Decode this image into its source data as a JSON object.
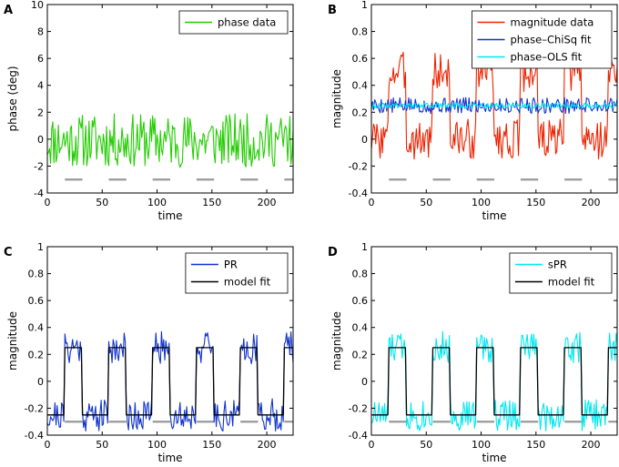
{
  "chart_data": [
    {
      "type": "line",
      "panel_label": "A",
      "xlabel": "time",
      "ylabel": "phase (deg)",
      "xlim": [
        0,
        224
      ],
      "ylim": [
        -4,
        10
      ],
      "xticks": [
        0,
        50,
        100,
        150,
        200
      ],
      "yticks": [
        -4,
        -2,
        0,
        2,
        4,
        6,
        8,
        10
      ],
      "legend": "top-right",
      "stimulus": {
        "level": -3,
        "onsets": [
          16,
          56,
          96,
          136,
          176,
          216
        ],
        "on_duration": 16,
        "color": "#999999"
      },
      "series": [
        {
          "name": "phase data",
          "color": "#22cc00",
          "in_legend": true,
          "gen": "noise",
          "seed": 11,
          "base": -0.1,
          "amp": 2.0
        }
      ]
    },
    {
      "type": "line",
      "panel_label": "B",
      "xlabel": "time",
      "ylabel": "magnitude",
      "xlim": [
        0,
        224
      ],
      "ylim": [
        -0.4,
        1
      ],
      "xticks": [
        0,
        50,
        100,
        150,
        200
      ],
      "yticks": [
        -0.4,
        -0.2,
        0,
        0.2,
        0.4,
        0.6,
        0.8,
        1
      ],
      "legend": "top-right",
      "stimulus": {
        "level": -0.3,
        "onsets": [
          16,
          56,
          96,
          136,
          176,
          216
        ],
        "on_duration": 16,
        "color": "#999999"
      },
      "series": [
        {
          "name": "magnitude data",
          "color": "#ee2200",
          "in_legend": true,
          "gen": "square",
          "seed": 3,
          "low": 0.0,
          "high": 0.5,
          "amp": 0.15,
          "onsets": [
            16,
            56,
            96,
            136,
            176,
            216
          ],
          "on_duration": 16
        },
        {
          "name": "phase–ChiSq fit",
          "color": "#1133cc",
          "in_legend": true,
          "gen": "noise",
          "seed": 5,
          "base": 0.25,
          "amp": 0.06
        },
        {
          "name": "phase–OLS fit",
          "color": "#00e8ee",
          "in_legend": true,
          "gen": "noise",
          "seed": 9,
          "base": 0.25,
          "amp": 0.02
        }
      ]
    },
    {
      "type": "line",
      "panel_label": "C",
      "xlabel": "time",
      "ylabel": "magnitude",
      "xlim": [
        0,
        224
      ],
      "ylim": [
        -0.4,
        1
      ],
      "xticks": [
        0,
        50,
        100,
        150,
        200
      ],
      "yticks": [
        -0.4,
        -0.2,
        0,
        0.2,
        0.4,
        0.6,
        0.8,
        1
      ],
      "legend": "top-right",
      "stimulus": {
        "level": -0.3,
        "onsets": [
          16,
          56,
          96,
          136,
          176,
          216
        ],
        "on_duration": 16,
        "color": "#999999"
      },
      "series": [
        {
          "name": "PR",
          "color": "#1133cc",
          "in_legend": true,
          "gen": "square",
          "seed": 21,
          "low": -0.25,
          "high": 0.25,
          "amp": 0.12,
          "onsets": [
            16,
            56,
            96,
            136,
            176,
            216
          ],
          "on_duration": 16
        },
        {
          "name": "model fit",
          "color": "#000000",
          "in_legend": true,
          "gen": "clean",
          "low": -0.25,
          "high": 0.25,
          "onsets": [
            16,
            56,
            96,
            136,
            176,
            216
          ],
          "on_duration": 16
        }
      ]
    },
    {
      "type": "line",
      "panel_label": "D",
      "xlabel": "time",
      "ylabel": "magnitude",
      "xlim": [
        0,
        224
      ],
      "ylim": [
        -0.4,
        1
      ],
      "xticks": [
        0,
        50,
        100,
        150,
        200
      ],
      "yticks": [
        -0.4,
        -0.2,
        0,
        0.2,
        0.4,
        0.6,
        0.8,
        1
      ],
      "legend": "top-right",
      "stimulus": {
        "level": -0.3,
        "onsets": [
          16,
          56,
          96,
          136,
          176,
          216
        ],
        "on_duration": 16,
        "color": "#999999"
      },
      "series": [
        {
          "name": "sPR",
          "color": "#00e8ee",
          "in_legend": true,
          "gen": "square",
          "seed": 33,
          "low": -0.25,
          "high": 0.25,
          "amp": 0.12,
          "onsets": [
            16,
            56,
            96,
            136,
            176,
            216
          ],
          "on_duration": 16
        },
        {
          "name": "model fit",
          "color": "#000000",
          "in_legend": true,
          "gen": "clean",
          "low": -0.25,
          "high": 0.25,
          "onsets": [
            16,
            56,
            96,
            136,
            176,
            216
          ],
          "on_duration": 16
        }
      ]
    }
  ]
}
